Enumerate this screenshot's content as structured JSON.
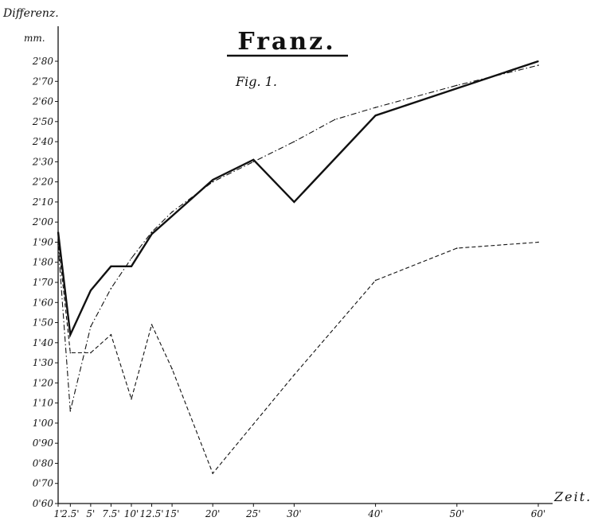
{
  "chart_data": {
    "type": "line",
    "title": "Franz.",
    "subtitle": "Fig. 1.",
    "ylabel": "Differenz.",
    "yunit": "mm.",
    "xlabel": "Zeit.",
    "ylim": [
      0.6,
      2.8
    ],
    "xlim": [
      1,
      60
    ],
    "grid": false,
    "y_ticks": [
      {
        "value": 2.8,
        "label": "2'80"
      },
      {
        "value": 2.7,
        "label": "2'70"
      },
      {
        "value": 2.6,
        "label": "2'60"
      },
      {
        "value": 2.5,
        "label": "2'50"
      },
      {
        "value": 2.4,
        "label": "2'40"
      },
      {
        "value": 2.3,
        "label": "2'30"
      },
      {
        "value": 2.2,
        "label": "2'20"
      },
      {
        "value": 2.1,
        "label": "2'10"
      },
      {
        "value": 2.0,
        "label": "2'00"
      },
      {
        "value": 1.9,
        "label": "1'90"
      },
      {
        "value": 1.8,
        "label": "1'80"
      },
      {
        "value": 1.7,
        "label": "1'70"
      },
      {
        "value": 1.6,
        "label": "1'60"
      },
      {
        "value": 1.5,
        "label": "1'50"
      },
      {
        "value": 1.4,
        "label": "1'40"
      },
      {
        "value": 1.3,
        "label": "1'30"
      },
      {
        "value": 1.2,
        "label": "1'20"
      },
      {
        "value": 1.1,
        "label": "1'10"
      },
      {
        "value": 1.0,
        "label": "1'00"
      },
      {
        "value": 0.9,
        "label": "0'90"
      },
      {
        "value": 0.8,
        "label": "0'80"
      },
      {
        "value": 0.7,
        "label": "0'70"
      },
      {
        "value": 0.6,
        "label": "0'60"
      }
    ],
    "x_ticks": [
      {
        "value": 1,
        "label": "1'"
      },
      {
        "value": 2.5,
        "label": "2.5'"
      },
      {
        "value": 5,
        "label": "5'"
      },
      {
        "value": 7.5,
        "label": "7.5'"
      },
      {
        "value": 10,
        "label": "10'"
      },
      {
        "value": 12.5,
        "label": "12.5'"
      },
      {
        "value": 15,
        "label": "15'"
      },
      {
        "value": 20,
        "label": "20'"
      },
      {
        "value": 25,
        "label": "25'"
      },
      {
        "value": 30,
        "label": "30'"
      },
      {
        "value": 40,
        "label": "40'"
      },
      {
        "value": 50,
        "label": "50'"
      },
      {
        "value": 60,
        "label": "60'"
      }
    ],
    "series": [
      {
        "style": "solid",
        "x": [
          1,
          2.5,
          5,
          7.5,
          10,
          12.5,
          15,
          20,
          25,
          30,
          40,
          60
        ],
        "y": [
          1.95,
          1.44,
          1.66,
          1.78,
          1.78,
          1.94,
          2.03,
          2.21,
          2.31,
          2.1,
          2.53,
          2.8
        ]
      },
      {
        "style": "dash-dot",
        "x": [
          1,
          2.5,
          5,
          7.5,
          10,
          12.5,
          15,
          20,
          25,
          30,
          35,
          40,
          50,
          60
        ],
        "y": [
          1.89,
          1.06,
          1.48,
          1.67,
          1.82,
          1.95,
          2.05,
          2.2,
          2.3,
          2.4,
          2.51,
          2.57,
          2.68,
          2.78
        ]
      },
      {
        "style": "dashed",
        "x": [
          1,
          2.5,
          5,
          7.5,
          10,
          12.5,
          15,
          20,
          30,
          40,
          50,
          60
        ],
        "y": [
          1.91,
          1.35,
          1.35,
          1.44,
          1.12,
          1.49,
          1.27,
          0.75,
          1.24,
          1.71,
          1.87,
          1.9
        ]
      }
    ]
  }
}
